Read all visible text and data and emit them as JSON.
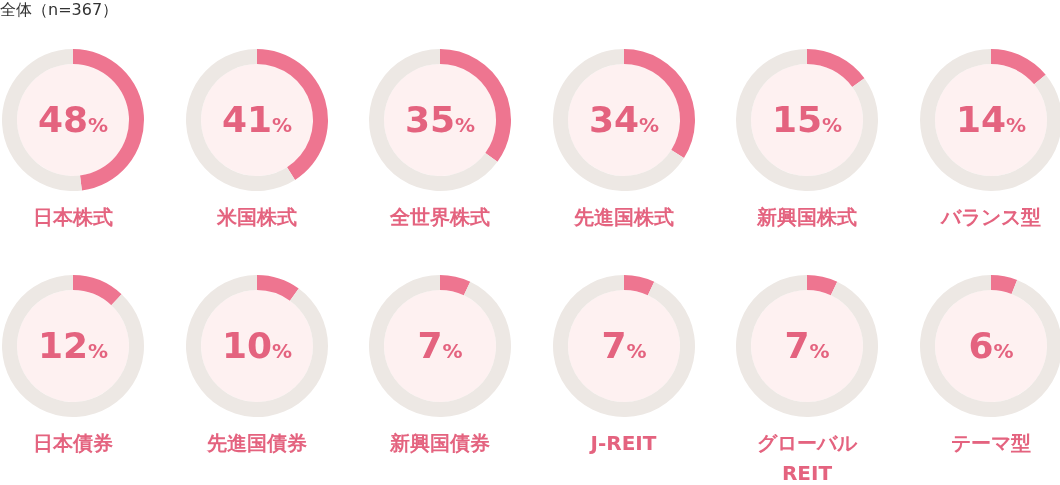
{
  "chart_data": [
    {
      "type": "donut",
      "title": "日本株式",
      "annotations": [
        "全体（n=367）"
      ],
      "categories": [
        null,
        null
      ],
      "values": [
        48,
        52
      ],
      "colors": [
        "#ee7590",
        "#ede8e4"
      ],
      "value_labels": [
        "48%",
        null
      ]
    },
    {
      "type": "donut",
      "title": "米国株式",
      "categories": [
        null,
        null
      ],
      "values": [
        41,
        59
      ],
      "colors": [
        "#ee7590",
        "#ede8e4"
      ],
      "value_labels": [
        "41%",
        null
      ]
    },
    {
      "type": "donut",
      "title": "全世界株式",
      "categories": [
        null,
        null
      ],
      "values": [
        35,
        65
      ],
      "colors": [
        "#ee7590",
        "#ede8e4"
      ],
      "value_labels": [
        "35%",
        null
      ]
    },
    {
      "type": "donut",
      "title": "先進国株式",
      "categories": [
        null,
        null
      ],
      "values": [
        34,
        66
      ],
      "colors": [
        "#ee7590",
        "#ede8e4"
      ],
      "value_labels": [
        "34%",
        null
      ]
    },
    {
      "type": "donut",
      "title": "新興国株式",
      "categories": [
        null,
        null
      ],
      "values": [
        15,
        85
      ],
      "colors": [
        "#ee7590",
        "#ede8e4"
      ],
      "value_labels": [
        "15%",
        null
      ]
    },
    {
      "type": "donut",
      "title": "バランス型",
      "categories": [
        null,
        null
      ],
      "values": [
        14,
        86
      ],
      "colors": [
        "#ee7590",
        "#ede8e4"
      ],
      "value_labels": [
        "14%",
        null
      ]
    },
    {
      "type": "donut",
      "title": "日本債券",
      "categories": [
        null,
        null
      ],
      "values": [
        12,
        88
      ],
      "colors": [
        "#ee7590",
        "#ede8e4"
      ],
      "value_labels": [
        "12%",
        null
      ]
    },
    {
      "type": "donut",
      "title": "先進国債券",
      "categories": [
        null,
        null
      ],
      "values": [
        10,
        90
      ],
      "colors": [
        "#ee7590",
        "#ede8e4"
      ],
      "value_labels": [
        "10%",
        null
      ]
    },
    {
      "type": "donut",
      "title": "新興国債券",
      "categories": [
        null,
        null
      ],
      "values": [
        7,
        93
      ],
      "colors": [
        "#ee7590",
        "#ede8e4"
      ],
      "value_labels": [
        "7%",
        null
      ]
    },
    {
      "type": "donut",
      "title": "J-REIT",
      "categories": [
        null,
        null
      ],
      "values": [
        7,
        93
      ],
      "colors": [
        "#ee7590",
        "#ede8e4"
      ],
      "value_labels": [
        "7%",
        null
      ]
    },
    {
      "type": "donut",
      "title": "グローバルREIT",
      "categories": [
        null,
        null
      ],
      "values": [
        7,
        93
      ],
      "colors": [
        "#ee7590",
        "#ede8e4"
      ],
      "value_labels": [
        "7%",
        null
      ]
    },
    {
      "type": "donut",
      "title": "テーマ型",
      "categories": [
        null,
        null
      ],
      "values": [
        6,
        94
      ],
      "colors": [
        "#ee7590",
        "#ede8e4"
      ],
      "value_labels": [
        "6%",
        null
      ]
    }
  ]
}
